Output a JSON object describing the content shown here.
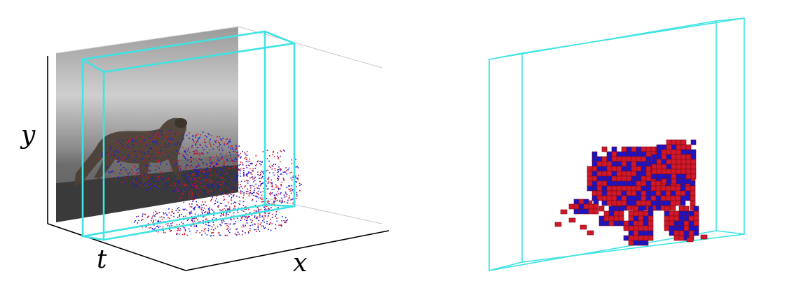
{
  "left_panel": {
    "axis_labels": {
      "y": "y",
      "t": "t",
      "x": "x"
    }
  },
  "colors": {
    "box": "#3FE3E3",
    "point_red": "#D1122A",
    "point_blue": "#1E14D8",
    "voxel_red": "#D0182A",
    "voxel_blue": "#1A14C8",
    "voxel_edge": "#7A0A14",
    "axis": "#000000",
    "guide": "#C8C8C8"
  }
}
